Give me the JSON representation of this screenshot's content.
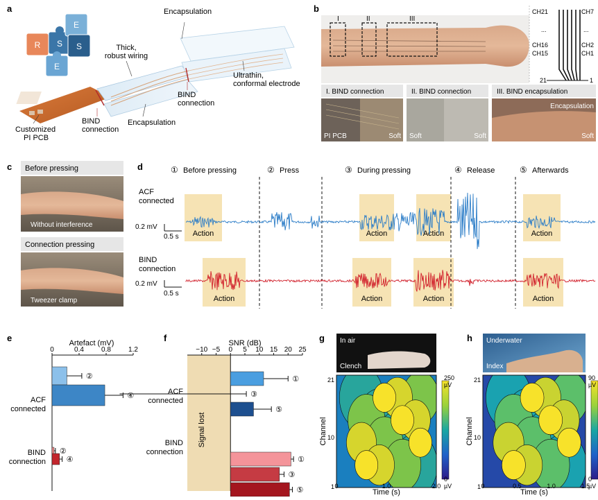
{
  "panels": {
    "a": {
      "letter": "a",
      "puzzle": [
        "R",
        "S",
        "S",
        "E",
        "E"
      ],
      "labels": {
        "encapsulation_top": "Encapsulation",
        "thick1": "Thick,",
        "thick2": "robust wiring",
        "ultrathin1": "Ultrathin,",
        "ultrathin2": "conformal electrode",
        "bind_conn_right1": "BIND",
        "bind_conn_right2": "connection",
        "bind_conn_left1": "BIND",
        "bind_conn_left2": "connection",
        "encapsulation_bottom": "Encapsulation",
        "custom1": "Customized",
        "custom2": "PI PCB"
      }
    },
    "b": {
      "letter": "b",
      "region_labels": [
        "I",
        "II",
        "III"
      ],
      "channels_left": [
        "CH21",
        "...",
        "CH16",
        "CH15"
      ],
      "channels_right": [
        "CH7",
        "...",
        "CH2",
        "CH1"
      ],
      "scale_left": "21",
      "scale_right": "1",
      "sub": [
        {
          "title": "I. BIND connection",
          "left": "PI PCB",
          "right": "Soft"
        },
        {
          "title": "II. BIND connection",
          "left": "Soft",
          "right": "Soft"
        },
        {
          "title": "III. BIND encapsulation",
          "top": "Encapsulation",
          "right": "Soft"
        }
      ]
    },
    "c": {
      "letter": "c",
      "top_title": "Before pressing",
      "top_caption": "Without interference",
      "bottom_title": "Connection pressing",
      "bottom_caption": "Tweezer clamp"
    },
    "d": {
      "letter": "d",
      "phases": [
        {
          "num": "①",
          "label": "Before pressing"
        },
        {
          "num": "②",
          "label": "Press"
        },
        {
          "num": "③",
          "label": "During pressing"
        },
        {
          "num": "④",
          "label": "Release"
        },
        {
          "num": "⑤",
          "label": "Afterwards"
        }
      ],
      "acf_label1": "ACF",
      "acf_label2": "connected",
      "bind_label1": "BIND",
      "bind_label2": "connection",
      "scale_mv": "0.2 mV",
      "scale_s": "0.5 s",
      "action": "Action",
      "acf_color": "#2a7cc7",
      "bind_color": "#d1202b",
      "action_color": "#f6e3b4"
    },
    "e": {
      "letter": "e"
    },
    "f": {
      "letter": "f",
      "signal_lost": "Signal lost"
    },
    "g": {
      "letter": "g",
      "photo_label": "In air",
      "photo_sub": "Clench",
      "cbar_max": "250",
      "cbar_max_unit": "µV",
      "cbar_min": "0",
      "cbar_min_unit": "µV"
    },
    "h": {
      "letter": "h",
      "photo_label": "Underwater",
      "photo_sub": "Index",
      "cbar_max": "90",
      "cbar_max_unit": "µV",
      "cbar_min": "0",
      "cbar_min_unit": "µV"
    }
  },
  "chart_data": [
    {
      "type": "bar",
      "panel": "e",
      "title": "",
      "xlabel": "Artefact (mV)",
      "ylabel": "",
      "xlim": [
        0,
        1.2
      ],
      "ticks": [
        "0",
        "0.4",
        "0.8",
        "1.2"
      ],
      "groups": [
        "ACF connected",
        "BIND connection"
      ],
      "markers": [
        "②",
        "④",
        "②",
        "④"
      ],
      "bars": [
        {
          "group": "ACF connected",
          "phase": "②",
          "value": 0.22,
          "error": 0.22,
          "color": "#8cc0ea"
        },
        {
          "group": "ACF connected",
          "phase": "④",
          "value": 0.78,
          "error": 0.27,
          "color": "#3d86c6"
        },
        {
          "group": "BIND connection",
          "phase": "②",
          "value": 0.03,
          "error": 0.02,
          "color": "#f08a8a"
        },
        {
          "group": "BIND connection",
          "phase": "④",
          "value": 0.11,
          "error": 0.04,
          "color": "#c2262d"
        }
      ]
    },
    {
      "type": "bar",
      "panel": "f",
      "title": "",
      "xlabel": "SNR (dB)",
      "ylabel": "",
      "xlim": [
        -15,
        25
      ],
      "ticks": [
        "−10",
        "−5",
        "0",
        "5",
        "10",
        "15",
        "20",
        "25"
      ],
      "groups": [
        "ACF connected",
        "BIND connection"
      ],
      "markers": [
        "①",
        "③",
        "⑤",
        "①",
        "③",
        "⑤"
      ],
      "bars": [
        {
          "group": "ACF connected",
          "phase": "①",
          "value": 11.5,
          "error": 8.5,
          "color": "#4a9ee0"
        },
        {
          "group": "ACF connected",
          "phase": "③",
          "value": 0,
          "error": 5.5,
          "color": "#4a9ee0",
          "lost": true
        },
        {
          "group": "ACF connected",
          "phase": "⑤",
          "value": 8.0,
          "error": 6.2,
          "color": "#1d4f8f"
        },
        {
          "group": "BIND connection",
          "phase": "①",
          "value": 21.0,
          "error": 0.9,
          "color": "#f4949a"
        },
        {
          "group": "BIND connection",
          "phase": "③",
          "value": 17.0,
          "error": 1.6,
          "color": "#c53b43"
        },
        {
          "group": "BIND connection",
          "phase": "⑤",
          "value": 20.5,
          "error": 1.0,
          "color": "#a4161f"
        }
      ]
    },
    {
      "type": "heatmap",
      "panel": "g",
      "title": "",
      "xlabel": "Time (s)",
      "ylabel": "Channel",
      "xlim": [
        0,
        2.0
      ],
      "ylim": [
        1,
        21
      ],
      "xticks": [
        "0",
        "1.0",
        "2.0"
      ],
      "yticks": [
        "1",
        "10",
        "21"
      ],
      "zlim": [
        0,
        250
      ]
    },
    {
      "type": "heatmap",
      "panel": "h",
      "title": "",
      "xlabel": "Time (s)",
      "ylabel": "Channel",
      "xlim": [
        0,
        1.5
      ],
      "ylim": [
        1,
        21
      ],
      "xticks": [
        "0",
        "0.5",
        "1.0",
        "1.5"
      ],
      "yticks": [
        "1",
        "10",
        "21"
      ],
      "zlim": [
        0,
        90
      ]
    }
  ]
}
